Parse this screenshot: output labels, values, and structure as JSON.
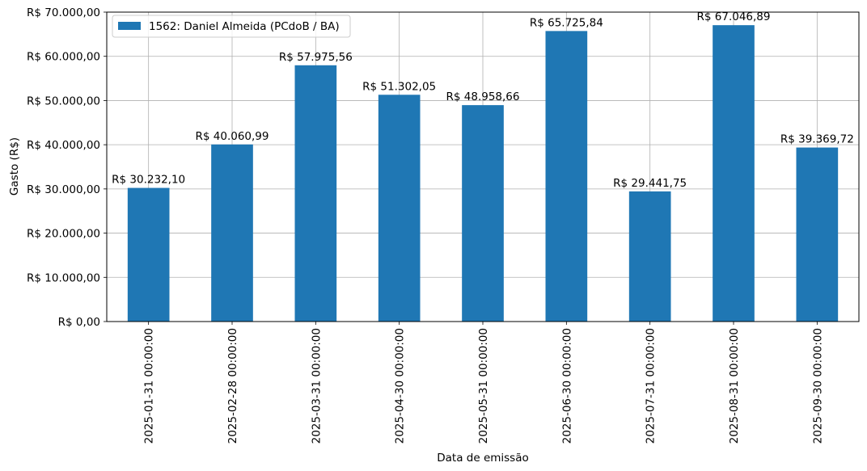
{
  "chart_data": {
    "type": "bar",
    "title": "",
    "xlabel": "Data de emissão",
    "ylabel": "Gasto (R$)",
    "categories": [
      "2025-01-31 00:00:00",
      "2025-02-28 00:00:00",
      "2025-03-31 00:00:00",
      "2025-04-30 00:00:00",
      "2025-05-31 00:00:00",
      "2025-06-30 00:00:00",
      "2025-07-31 00:00:00",
      "2025-08-31 00:00:00",
      "2025-09-30 00:00:00"
    ],
    "series": [
      {
        "name": "1562: Daniel Almeida (PCdoB / BA)",
        "color": "#1f77b4",
        "values": [
          30232.1,
          40060.99,
          57975.56,
          51302.05,
          48958.66,
          65725.84,
          29441.75,
          67046.89,
          39369.72
        ],
        "value_labels": [
          "R$ 30.232,10",
          "R$ 40.060,99",
          "R$ 57.975,56",
          "R$ 51.302,05",
          "R$ 48.958,66",
          "R$ 65.725,84",
          "R$ 29.441,75",
          "R$ 67.046,89",
          "R$ 39.369,72"
        ]
      }
    ],
    "ylim": [
      0,
      70000
    ],
    "yticks": [
      0,
      10000,
      20000,
      30000,
      40000,
      50000,
      60000,
      70000
    ],
    "ytick_labels": [
      "R$ 0,00",
      "R$ 10.000,00",
      "R$ 20.000,00",
      "R$ 30.000,00",
      "R$ 40.000,00",
      "R$ 50.000,00",
      "R$ 60.000,00",
      "R$ 70.000,00"
    ],
    "grid": true,
    "legend_position": "top-left",
    "grid_color": "#b0b0b0"
  }
}
